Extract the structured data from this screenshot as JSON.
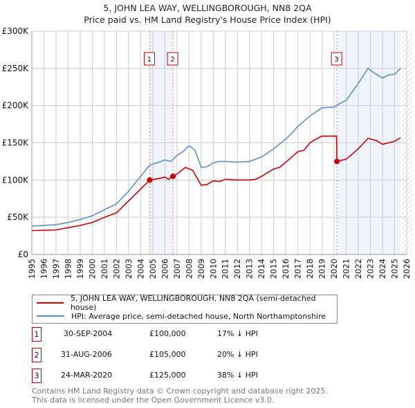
{
  "chart_data": {
    "type": "line",
    "title": "5, JOHN LEA WAY, WELLINGBOROUGH, NN8 2QA",
    "subtitle": "Price paid vs. HM Land Registry's House Price Index (HPI)",
    "xlim": [
      1995,
      2026
    ],
    "ylim": [
      0,
      300000
    ],
    "x_ticks": [
      "1995",
      "1996",
      "1997",
      "1998",
      "1999",
      "2000",
      "2001",
      "2002",
      "2003",
      "2004",
      "2005",
      "2006",
      "2007",
      "2008",
      "2009",
      "2010",
      "2011",
      "2012",
      "2013",
      "2014",
      "2015",
      "2016",
      "2017",
      "2018",
      "2019",
      "2020",
      "2021",
      "2022",
      "2023",
      "2024",
      "2025",
      "2026"
    ],
    "y_ticks": [
      {
        "v": 0,
        "label": "£0"
      },
      {
        "v": 50000,
        "label": "£50K"
      },
      {
        "v": 100000,
        "label": "£100K"
      },
      {
        "v": 150000,
        "label": "£150K"
      },
      {
        "v": 200000,
        "label": "£200K"
      },
      {
        "v": 250000,
        "label": "£250K"
      },
      {
        "v": 300000,
        "label": "£300K"
      }
    ],
    "grid": true,
    "series": [
      {
        "name": "5, JOHN LEA WAY, WELLINGBOROUGH, NN8 2QA (semi-detached house)",
        "color": "#cc0000",
        "x": [
          1995,
          1996,
          1997,
          1998,
          1999,
          2000,
          2001,
          2002,
          2003,
          2004,
          2004.75,
          2005.5,
          2006,
          2006.3,
          2006.67,
          2007,
          2007.7,
          2008.3,
          2009,
          2009.5,
          2010,
          2010.5,
          2011,
          2012,
          2013,
          2013.5,
          2014,
          2015,
          2015.5,
          2016,
          2017,
          2017.5,
          2018,
          2018.5,
          2019,
          2020.2,
          2020.23,
          2021,
          2021.5,
          2022,
          2022.8,
          2023.5,
          2024,
          2024.5,
          2025,
          2025.5
        ],
        "y": [
          32000,
          32500,
          33000,
          36000,
          39000,
          43000,
          50000,
          56000,
          72000,
          88000,
          100000,
          102000,
          104000,
          101000,
          105000,
          108000,
          117000,
          113000,
          93000,
          94000,
          99000,
          98000,
          101000,
          100000,
          100000,
          101000,
          105000,
          115000,
          117000,
          124000,
          138000,
          140000,
          150000,
          155000,
          159000,
          159000,
          125000,
          128000,
          135000,
          142000,
          156000,
          153000,
          148000,
          150000,
          152000,
          157000
        ]
      },
      {
        "name": "HPI: Average price, semi-detached house, North Northamptonshire",
        "color": "#5b8fd0",
        "x": [
          1995,
          1996,
          1997,
          1998,
          1999,
          2000,
          2001,
          2002,
          2003,
          2004,
          2004.75,
          2005.5,
          2006,
          2006.5,
          2007,
          2007.5,
          2008,
          2008.5,
          2009,
          2009.5,
          2010,
          2010.5,
          2011,
          2012,
          2013,
          2014,
          2015,
          2016,
          2016.5,
          2017,
          2018,
          2019,
          2020,
          2020.5,
          2021,
          2022,
          2022.8,
          2023.2,
          2024,
          2024.5,
          2025,
          2025.5
        ],
        "y": [
          38000,
          39000,
          40000,
          43000,
          47000,
          52000,
          60000,
          68000,
          85000,
          105000,
          120000,
          124000,
          127000,
          125000,
          133000,
          138000,
          146000,
          140000,
          117000,
          118000,
          123000,
          125000,
          125000,
          124000,
          125000,
          131000,
          142000,
          155000,
          163000,
          172000,
          186000,
          197000,
          198000,
          203000,
          207000,
          230000,
          250000,
          245000,
          237000,
          241000,
          242000,
          250000
        ]
      }
    ],
    "sales": [
      {
        "n": "1",
        "x": 2004.75,
        "y": 100000,
        "date": "30-SEP-2004",
        "price": "£100,000",
        "diff": "17% ↓ HPI"
      },
      {
        "n": "2",
        "x": 2006.67,
        "y": 105000,
        "date": "31-AUG-2006",
        "price": "£105,000",
        "diff": "20% ↓ HPI"
      },
      {
        "n": "3",
        "x": 2020.23,
        "y": 125000,
        "date": "24-MAR-2020",
        "price": "£125,000",
        "diff": "38% ↓ HPI"
      }
    ],
    "shaded_ranges": [
      [
        2004.75,
        2006.67
      ],
      [
        2020.23,
        2025.5
      ]
    ],
    "forecast_from": 2025.6,
    "legend_position": "below"
  },
  "footer": [
    "Contains HM Land Registry data © Crown copyright and database right 2025.",
    "This data is licensed under the Open Government Licence v3.0."
  ]
}
